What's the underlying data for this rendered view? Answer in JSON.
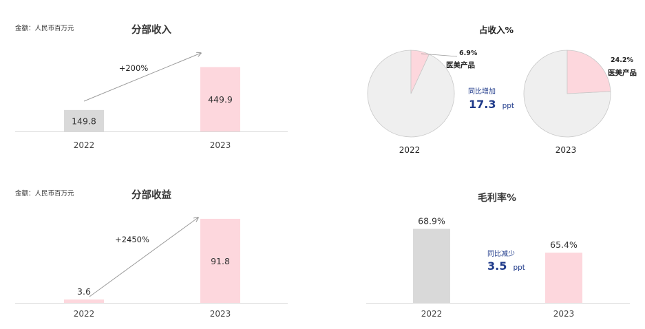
{
  "colors": {
    "pink": "#fdd7dd",
    "grey_bar": "#d9d9d9",
    "pie_grey": "#efefef",
    "navy": "#1f3a8a",
    "title": "#3a3a3a",
    "axis_text": "#444444"
  },
  "chart_data": [
    {
      "id": "segment-revenue",
      "type": "bar",
      "title": "分部收入",
      "unit_note": "金额：人民币百万元",
      "categories": [
        "2022",
        "2023"
      ],
      "values": [
        149.8,
        449.9
      ],
      "value_labels": [
        "149.8",
        "449.9"
      ],
      "bar_colors": [
        "#d9d9d9",
        "#fdd7dd"
      ],
      "growth_label": "+200%",
      "ylim": [
        0,
        500
      ]
    },
    {
      "id": "revenue-share",
      "type": "pie",
      "title": "占收入%",
      "pies": [
        {
          "year": "2022",
          "slices": [
            {
              "label": "医美产品",
              "value": 6.9,
              "value_label": "6.9%",
              "color": "#fdd7dd"
            },
            {
              "label": "",
              "value": 93.1,
              "value_label": "",
              "color": "#efefef"
            }
          ]
        },
        {
          "year": "2023",
          "slices": [
            {
              "label": "医美产品",
              "value": 24.2,
              "value_label": "24.2%",
              "color": "#fdd7dd"
            },
            {
              "label": "",
              "value": 75.8,
              "value_label": "",
              "color": "#efefef"
            }
          ]
        }
      ],
      "callout": {
        "caption": "同比增加",
        "value": "17.3",
        "unit": "ppt"
      }
    },
    {
      "id": "segment-profit",
      "type": "bar",
      "title": "分部收益",
      "unit_note": "金额：人民币百万元",
      "categories": [
        "2022",
        "2023"
      ],
      "values": [
        3.6,
        91.8
      ],
      "value_labels": [
        "3.6",
        "91.8"
      ],
      "bar_colors": [
        "#fdd7dd",
        "#fdd7dd"
      ],
      "growth_label": "+2450%",
      "ylim": [
        0,
        100
      ]
    },
    {
      "id": "gross-margin",
      "type": "bar",
      "title": "毛利率%",
      "categories": [
        "2022",
        "2023"
      ],
      "values": [
        68.9,
        65.4
      ],
      "value_labels": [
        "68.9%",
        "65.4%"
      ],
      "bar_colors": [
        "#d9d9d9",
        "#fdd7dd"
      ],
      "callout": {
        "caption": "同比减少",
        "value": "3.5",
        "unit": "ppt"
      },
      "ylim": [
        58,
        72
      ]
    }
  ]
}
